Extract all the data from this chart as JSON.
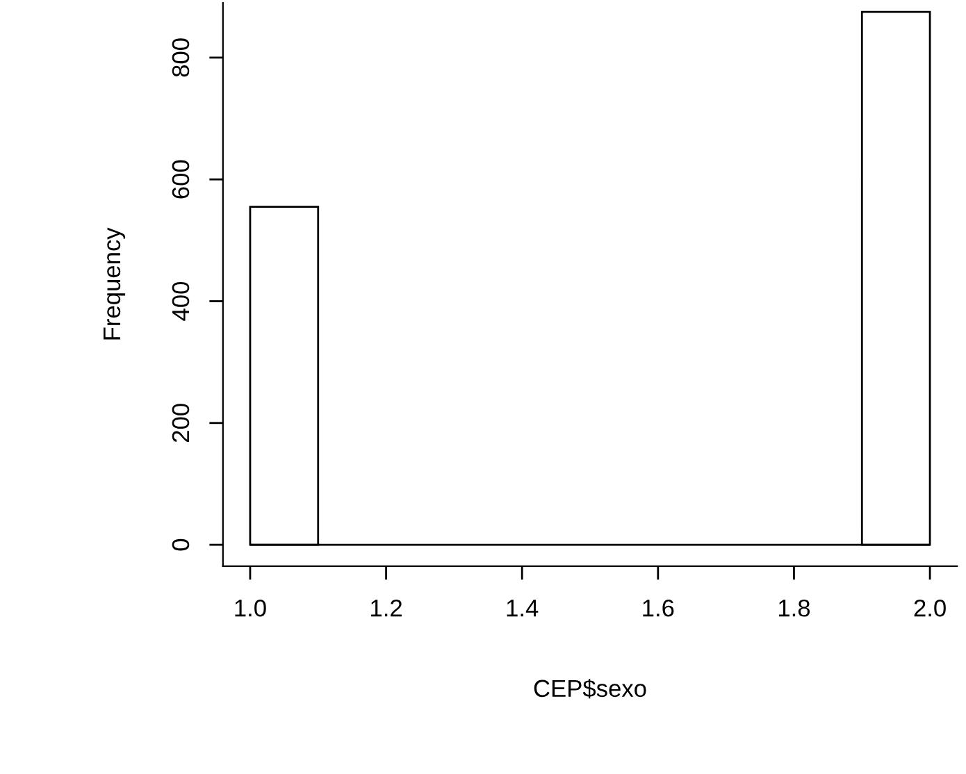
{
  "chart_data": {
    "type": "histogram",
    "xlabel": "CEP$sexo",
    "ylabel": "Frequency",
    "bins": [
      1.0,
      1.1,
      1.2,
      1.3,
      1.4,
      1.5,
      1.6,
      1.7,
      1.8,
      1.9,
      2.0
    ],
    "values": [
      555,
      0,
      0,
      0,
      0,
      0,
      0,
      0,
      0,
      875
    ],
    "color": "#ffffff",
    "xlim": [
      0.96,
      2.04
    ],
    "ylim": [
      -35,
      890
    ],
    "xticks": [
      {
        "value": 1.0,
        "label": "1.0"
      },
      {
        "value": 1.2,
        "label": "1.2"
      },
      {
        "value": 1.4,
        "label": "1.4"
      },
      {
        "value": 1.6,
        "label": "1.6"
      },
      {
        "value": 1.8,
        "label": "1.8"
      },
      {
        "value": 2.0,
        "label": "2.0"
      }
    ],
    "yticks": [
      0,
      200,
      400,
      600,
      800
    ],
    "ref_lines": [
      {
        "axis": "y",
        "value": 0,
        "color": "#000000"
      }
    ],
    "grid": false
  }
}
